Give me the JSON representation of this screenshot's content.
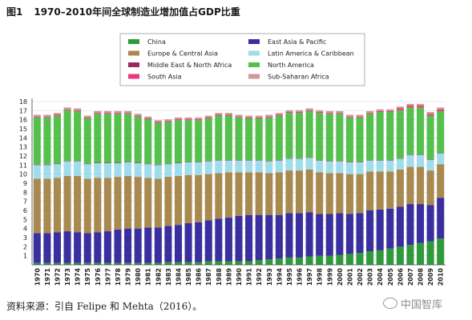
{
  "figure": {
    "number": "图1",
    "title": "1970–2010年间全球制造业增加值占GDP比重",
    "source": "资料来源：引自 Felipe 和 Mehta（2016）。",
    "watermark": "中国智库"
  },
  "colors": {
    "China": "#2e9a3c",
    "East Asia & Pacific": "#3a2f9e",
    "Europe & Central Asia": "#a8894f",
    "Latin America & Caribbean": "#9fdcec",
    "Middle East & North Africa": "#9a2a5e",
    "North America": "#55c04e",
    "South Asia": "#e83a7a",
    "Sub-Saharan Africa": "#c99a98"
  },
  "legend_items": [
    "China",
    "East Asia & Pacific",
    "Europe & Central Asia",
    "Latin America & Caribbean",
    "Middle East & North Africa",
    "North America",
    "South Asia",
    "Sub-Saharan Africa"
  ],
  "chart_data": {
    "type": "bar",
    "stacked": true,
    "legend_position": "top",
    "grid": true,
    "ylim": [
      0,
      18
    ],
    "yticks": [
      1,
      2,
      3,
      4,
      5,
      6,
      7,
      8,
      9,
      10,
      11,
      12,
      13,
      14,
      15,
      16,
      17,
      18
    ],
    "categories": [
      "1970",
      "1971",
      "1972",
      "1973",
      "1974",
      "1975",
      "1976",
      "1977",
      "1978",
      "1979",
      "1980",
      "1981",
      "1982",
      "1983",
      "1984",
      "1985",
      "1986",
      "1987",
      "1988",
      "1989",
      "1990",
      "1991",
      "1992",
      "1993",
      "1994",
      "1995",
      "1996",
      "1997",
      "1998",
      "1999",
      "2000",
      "2001",
      "2002",
      "2003",
      "2004",
      "2005",
      "2006",
      "2007",
      "2008",
      "2009",
      "2010"
    ],
    "series": [
      {
        "name": "China",
        "values": [
          0.2,
          0.2,
          0.2,
          0.2,
          0.2,
          0.2,
          0.2,
          0.2,
          0.2,
          0.2,
          0.2,
          0.2,
          0.2,
          0.3,
          0.3,
          0.3,
          0.3,
          0.4,
          0.4,
          0.4,
          0.4,
          0.4,
          0.5,
          0.6,
          0.7,
          0.8,
          0.8,
          0.9,
          1.0,
          1.0,
          1.1,
          1.2,
          1.3,
          1.5,
          1.6,
          1.8,
          2.0,
          2.2,
          2.4,
          2.6,
          2.9
        ]
      },
      {
        "name": "East Asia & Pacific",
        "values": [
          3.3,
          3.3,
          3.4,
          3.5,
          3.4,
          3.3,
          3.4,
          3.5,
          3.7,
          3.8,
          3.8,
          3.9,
          3.9,
          4.0,
          4.1,
          4.3,
          4.4,
          4.5,
          4.7,
          4.8,
          5.0,
          5.1,
          5.0,
          4.9,
          4.8,
          4.9,
          4.9,
          4.9,
          4.6,
          4.6,
          4.6,
          4.4,
          4.4,
          4.5,
          4.5,
          4.4,
          4.4,
          4.5,
          4.3,
          4.0,
          4.5
        ]
      },
      {
        "name": "Europe & Central Asia",
        "values": [
          6.0,
          6.0,
          6.0,
          6.1,
          6.2,
          6.0,
          6.0,
          5.9,
          5.8,
          5.8,
          5.7,
          5.5,
          5.4,
          5.4,
          5.4,
          5.3,
          5.2,
          5.1,
          5.0,
          5.0,
          4.8,
          4.7,
          4.7,
          4.6,
          4.7,
          4.7,
          4.7,
          4.7,
          4.6,
          4.5,
          4.4,
          4.4,
          4.3,
          4.3,
          4.2,
          4.1,
          4.1,
          4.1,
          4.1,
          3.8,
          3.7
        ]
      },
      {
        "name": "Latin America & Caribbean",
        "values": [
          1.5,
          1.5,
          1.5,
          1.6,
          1.6,
          1.6,
          1.6,
          1.6,
          1.5,
          1.5,
          1.5,
          1.5,
          1.5,
          1.4,
          1.4,
          1.4,
          1.4,
          1.4,
          1.4,
          1.3,
          1.3,
          1.3,
          1.3,
          1.3,
          1.3,
          1.3,
          1.3,
          1.3,
          1.3,
          1.3,
          1.3,
          1.3,
          1.3,
          1.2,
          1.2,
          1.2,
          1.2,
          1.3,
          1.3,
          1.2,
          1.2
        ]
      },
      {
        "name": "Middle East & North Africa",
        "values": [
          0.05,
          0.05,
          0.05,
          0.05,
          0.05,
          0.05,
          0.05,
          0.05,
          0.05,
          0.05,
          0.05,
          0.05,
          0.05,
          0.05,
          0.05,
          0.05,
          0.05,
          0.05,
          0.05,
          0.05,
          0.05,
          0.05,
          0.05,
          0.05,
          0.05,
          0.05,
          0.05,
          0.05,
          0.05,
          0.05,
          0.05,
          0.05,
          0.05,
          0.05,
          0.05,
          0.05,
          0.05,
          0.05,
          0.05,
          0.05,
          0.05
        ]
      },
      {
        "name": "North America",
        "values": [
          5.2,
          5.2,
          5.3,
          5.6,
          5.5,
          5.0,
          5.4,
          5.4,
          5.4,
          5.3,
          5.1,
          4.9,
          4.6,
          4.6,
          4.7,
          4.6,
          4.6,
          4.7,
          4.9,
          4.9,
          4.7,
          4.6,
          4.6,
          4.8,
          4.9,
          5.0,
          5.0,
          5.1,
          5.2,
          5.2,
          5.2,
          4.9,
          4.9,
          5.1,
          5.3,
          5.3,
          5.3,
          5.2,
          5.2,
          4.8,
          4.6
        ]
      },
      {
        "name": "South Asia",
        "values": [
          0.1,
          0.1,
          0.1,
          0.1,
          0.1,
          0.1,
          0.1,
          0.1,
          0.1,
          0.1,
          0.1,
          0.1,
          0.1,
          0.1,
          0.1,
          0.1,
          0.1,
          0.1,
          0.1,
          0.1,
          0.1,
          0.1,
          0.1,
          0.1,
          0.1,
          0.1,
          0.1,
          0.1,
          0.1,
          0.1,
          0.1,
          0.1,
          0.1,
          0.1,
          0.1,
          0.1,
          0.2,
          0.2,
          0.2,
          0.2,
          0.2
        ]
      },
      {
        "name": "Sub-Saharan Africa",
        "values": [
          0.2,
          0.2,
          0.2,
          0.2,
          0.2,
          0.2,
          0.2,
          0.2,
          0.2,
          0.2,
          0.2,
          0.2,
          0.2,
          0.2,
          0.2,
          0.2,
          0.2,
          0.2,
          0.2,
          0.2,
          0.2,
          0.2,
          0.2,
          0.2,
          0.2,
          0.2,
          0.2,
          0.2,
          0.2,
          0.2,
          0.2,
          0.2,
          0.2,
          0.2,
          0.2,
          0.2,
          0.2,
          0.2,
          0.2,
          0.2,
          0.2
        ]
      }
    ]
  }
}
